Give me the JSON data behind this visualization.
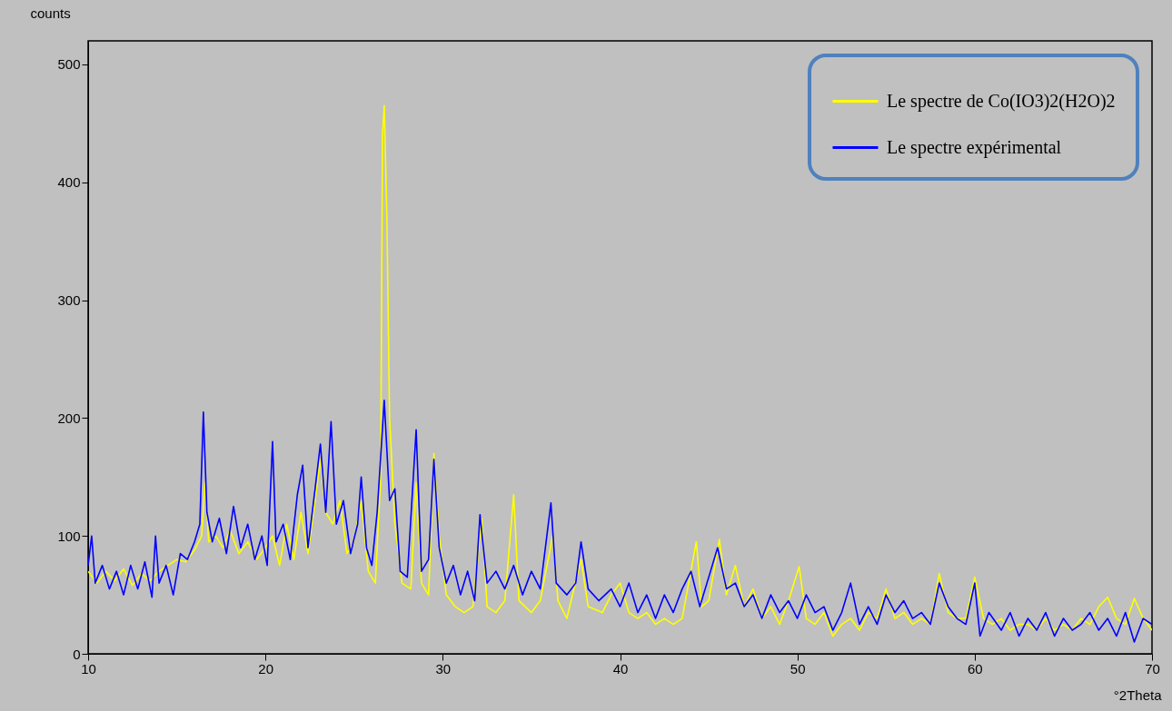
{
  "chart_data": {
    "type": "line",
    "xlabel": "°2Theta",
    "ylabel": "counts",
    "xlim": [
      10,
      70
    ],
    "xticks": [
      10,
      20,
      30,
      40,
      50,
      60,
      70
    ],
    "ylim": [
      0,
      520
    ],
    "yticks": [
      0,
      100,
      200,
      300,
      400,
      500
    ],
    "grid": false,
    "legend": "top right",
    "line_style": "solid",
    "series": [
      {
        "name": "Le spectre de Co(IO3)2(H2O)2",
        "color": "#ffff00",
        "x": [
          10,
          10.5,
          11,
          11.5,
          12,
          12.5,
          13,
          13.5,
          14,
          14.5,
          15,
          15.5,
          16,
          16.4,
          16.6,
          16.8,
          17.2,
          17.6,
          18,
          18.5,
          19,
          19.5,
          20,
          20.4,
          20.8,
          21.2,
          21.6,
          22,
          22.4,
          22.8,
          23.1,
          23.4,
          23.8,
          24.2,
          24.6,
          25,
          25.4,
          25.8,
          26.2,
          26.5,
          26.6,
          26.7,
          26.85,
          27,
          27.3,
          27.7,
          28.2,
          28.5,
          28.8,
          29.2,
          29.5,
          29.8,
          30.2,
          30.7,
          31.2,
          31.7,
          32.2,
          32.5,
          33,
          33.5,
          34,
          34.3,
          35,
          35.5,
          36.2,
          36.5,
          37,
          37.8,
          38.2,
          39,
          39.5,
          40,
          40.5,
          41,
          41.5,
          42,
          42.5,
          43,
          43.5,
          44.3,
          44.6,
          45,
          45.6,
          46,
          46.5,
          47,
          47.5,
          48,
          48.5,
          49,
          49.5,
          50.1,
          50.5,
          51,
          51.5,
          52,
          52.5,
          53,
          53.5,
          54,
          54.5,
          55,
          55.5,
          56,
          56.5,
          57,
          57.5,
          58,
          58.5,
          59,
          59.5,
          60,
          60.5,
          61,
          61.5,
          62,
          62.5,
          63,
          63.5,
          64,
          64.5,
          65,
          65.5,
          66,
          66.5,
          67,
          67.5,
          68,
          68.5,
          69,
          69.5,
          70
        ],
        "values": [
          70,
          60,
          70,
          62,
          72,
          58,
          68,
          62,
          70,
          75,
          80,
          78,
          88,
          100,
          145,
          95,
          100,
          90,
          105,
          85,
          95,
          80,
          90,
          100,
          75,
          110,
          80,
          120,
          85,
          130,
          165,
          120,
          110,
          130,
          85,
          95,
          130,
          70,
          60,
          150,
          440,
          465,
          370,
          200,
          110,
          60,
          55,
          145,
          60,
          50,
          170,
          100,
          50,
          40,
          35,
          40,
          115,
          40,
          35,
          45,
          135,
          45,
          35,
          45,
          100,
          45,
          30,
          80,
          40,
          35,
          50,
          60,
          35,
          30,
          35,
          25,
          30,
          25,
          30,
          95,
          40,
          45,
          97,
          50,
          75,
          40,
          55,
          30,
          40,
          25,
          45,
          74,
          30,
          25,
          35,
          15,
          25,
          30,
          20,
          35,
          30,
          55,
          30,
          35,
          25,
          30,
          25,
          68,
          35,
          30,
          30,
          65,
          30,
          25,
          30,
          20,
          25,
          25,
          20,
          30,
          20,
          25,
          20,
          30,
          25,
          40,
          48,
          30,
          25,
          47,
          30,
          20
        ]
      },
      {
        "name": "Le spectre expérimental",
        "color": "#0000ff",
        "x": [
          10,
          10.2,
          10.4,
          10.8,
          11.2,
          11.6,
          12,
          12.4,
          12.8,
          13.2,
          13.6,
          13.8,
          14,
          14.4,
          14.8,
          15.2,
          15.6,
          16,
          16.3,
          16.5,
          16.7,
          17,
          17.4,
          17.8,
          18.2,
          18.6,
          19,
          19.4,
          19.8,
          20.1,
          20.4,
          20.6,
          21,
          21.4,
          21.8,
          22.1,
          22.4,
          22.8,
          23.1,
          23.4,
          23.7,
          24,
          24.4,
          24.8,
          25.2,
          25.4,
          25.7,
          26,
          26.3,
          26.7,
          27,
          27.3,
          27.6,
          28,
          28.5,
          28.8,
          29.2,
          29.5,
          29.8,
          30.2,
          30.6,
          31,
          31.4,
          31.8,
          32.1,
          32.5,
          33,
          33.5,
          34,
          34.5,
          35,
          35.5,
          36.1,
          36.4,
          37,
          37.5,
          37.8,
          38.2,
          38.8,
          39.5,
          40,
          40.5,
          41,
          41.5,
          42,
          42.5,
          43,
          43.5,
          44,
          44.5,
          45,
          45.5,
          46,
          46.5,
          47,
          47.5,
          48,
          48.5,
          49,
          49.5,
          50,
          50.5,
          51,
          51.5,
          52,
          52.5,
          53,
          53.5,
          54,
          54.5,
          55,
          55.5,
          56,
          56.5,
          57,
          57.5,
          58,
          58.5,
          59,
          59.5,
          60,
          60.3,
          60.8,
          61.5,
          62,
          62.5,
          63,
          63.5,
          64,
          64.5,
          65,
          65.5,
          66,
          66.5,
          67,
          67.5,
          68,
          68.5,
          69,
          69.5,
          70
        ],
        "values": [
          75,
          100,
          60,
          75,
          55,
          70,
          50,
          75,
          55,
          78,
          48,
          100,
          60,
          75,
          50,
          85,
          80,
          95,
          110,
          205,
          120,
          95,
          115,
          85,
          125,
          90,
          110,
          80,
          100,
          75,
          180,
          95,
          110,
          80,
          135,
          160,
          90,
          140,
          178,
          120,
          197,
          110,
          130,
          85,
          110,
          150,
          90,
          75,
          120,
          215,
          130,
          140,
          70,
          65,
          190,
          70,
          80,
          165,
          90,
          60,
          75,
          50,
          70,
          45,
          118,
          60,
          70,
          55,
          75,
          50,
          70,
          55,
          128,
          60,
          50,
          60,
          95,
          55,
          45,
          55,
          40,
          60,
          35,
          50,
          30,
          50,
          35,
          55,
          70,
          40,
          65,
          90,
          55,
          60,
          40,
          50,
          30,
          50,
          35,
          45,
          30,
          50,
          35,
          40,
          20,
          35,
          60,
          25,
          40,
          25,
          50,
          35,
          45,
          30,
          35,
          25,
          60,
          40,
          30,
          25,
          60,
          15,
          35,
          20,
          35,
          15,
          30,
          20,
          35,
          15,
          30,
          20,
          25,
          35,
          20,
          30,
          15,
          35,
          10,
          30,
          25
        ]
      }
    ]
  }
}
